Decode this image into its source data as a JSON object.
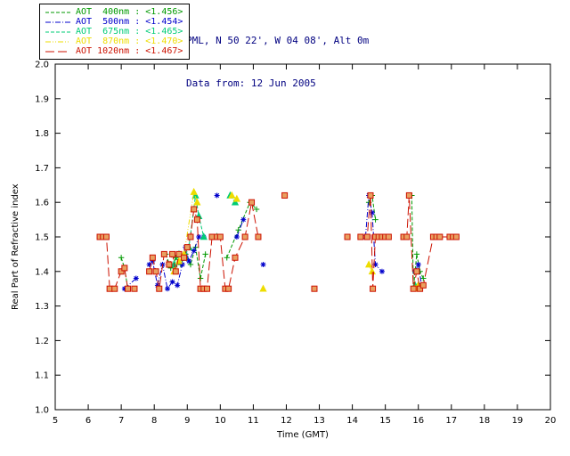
{
  "header": {
    "line1": "PML, N 50 22', W 04 08', Alt 0m",
    "line2": "Data from: 12 Jun 2005"
  },
  "chart_data": {
    "type": "line",
    "title": "",
    "xlabel": "Time (GMT)",
    "ylabel": "Real Part of Refractive index",
    "xlim": [
      5,
      20
    ],
    "ylim": [
      1.0,
      2.0
    ],
    "xticks": [
      5,
      6,
      7,
      8,
      9,
      10,
      11,
      12,
      13,
      14,
      15,
      16,
      17,
      18,
      19,
      20
    ],
    "yticks": [
      1.0,
      1.1,
      1.2,
      1.3,
      1.4,
      1.5,
      1.6,
      1.7,
      1.8,
      1.9,
      2.0
    ],
    "ytick_labels": [
      "1.0",
      "1.1",
      "1.2",
      "1.3",
      "1.4",
      "1.5",
      "1.6",
      "1.7",
      "1.8",
      "1.9",
      "2.0"
    ],
    "grid": false,
    "legend_position": "top-left",
    "series": [
      {
        "id": "400nm",
        "legend_text": "AOT  400nm : <1.456>",
        "color": "#009900",
        "marker": "plus",
        "dash": "4,2",
        "x": [
          7.0,
          7.1,
          7.2,
          8.35,
          8.5,
          8.65,
          8.8,
          8.95,
          9.1,
          9.25,
          9.4,
          9.55,
          10.2,
          10.55,
          10.9,
          11.1,
          14.5,
          14.6,
          14.7,
          15.8,
          15.85,
          15.95,
          16.05,
          16.15
        ],
        "y": [
          1.44,
          1.41,
          1.35,
          1.45,
          1.41,
          1.44,
          1.42,
          1.45,
          1.42,
          1.47,
          1.38,
          1.45,
          1.44,
          1.52,
          1.6,
          1.58,
          1.6,
          1.62,
          1.55,
          1.62,
          1.35,
          1.45,
          1.4,
          1.38
        ]
      },
      {
        "id": "500nm",
        "legend_text": "AOT  500nm : <1.454>",
        "color": "#0000cc",
        "marker": "asterisk",
        "dash": "6,2,1,2",
        "x": [
          6.65,
          7.1,
          7.45,
          7.85,
          7.95,
          8.1,
          8.25,
          8.4,
          8.55,
          8.7,
          8.85,
          8.95,
          9.05,
          9.2,
          9.35,
          9.5,
          9.9,
          10.5,
          10.7,
          11.3,
          14.4,
          14.5,
          14.6,
          14.7,
          14.9,
          15.9,
          16.0,
          16.1
        ],
        "y": [
          1.35,
          1.35,
          1.38,
          1.42,
          1.43,
          1.36,
          1.42,
          1.35,
          1.37,
          1.36,
          1.42,
          1.47,
          1.43,
          1.46,
          1.5,
          1.5,
          1.62,
          1.5,
          1.55,
          1.42,
          1.5,
          1.62,
          1.57,
          1.42,
          1.4,
          1.4,
          1.42,
          1.36
        ]
      },
      {
        "id": "675nm",
        "legend_text": "AOT  675nm : <1.465>",
        "color": "#00cc77",
        "marker": "triangle",
        "dash": "4,2",
        "x": [
          8.6,
          8.75,
          8.9,
          9.05,
          9.25,
          9.35,
          9.5,
          9.9,
          10.3,
          10.45,
          15.9,
          16.0
        ],
        "y": [
          1.42,
          1.45,
          1.44,
          1.47,
          1.62,
          1.56,
          1.5,
          1.5,
          1.62,
          1.6,
          1.36,
          1.36
        ]
      },
      {
        "id": "870nm",
        "legend_text": "AOT  870nm : <1.470>",
        "color": "#eedd00",
        "marker": "triangle",
        "dash": "6,2,1,2,1,2",
        "x": [
          8.6,
          8.75,
          8.9,
          9.2,
          9.3,
          10.35,
          10.5,
          11.3,
          14.5,
          14.6,
          15.9,
          16.0
        ],
        "y": [
          1.4,
          1.43,
          1.45,
          1.63,
          1.6,
          1.62,
          1.61,
          1.35,
          1.42,
          1.4,
          1.35,
          1.36
        ]
      },
      {
        "id": "1020nm",
        "legend_text": "AOT 1020nm : <1.467>",
        "color": "#cc1100",
        "marker": "square",
        "marker_fill": "#e8a060",
        "dash": "10,4",
        "x": [
          6.35,
          6.45,
          6.55,
          6.65,
          6.8,
          7.0,
          7.1,
          7.2,
          7.4,
          7.85,
          7.95,
          8.05,
          8.15,
          8.3,
          8.45,
          8.55,
          8.65,
          8.75,
          8.9,
          9.0,
          9.1,
          9.2,
          9.3,
          9.4,
          9.5,
          9.6,
          9.75,
          9.9,
          10.0,
          10.15,
          10.25,
          10.45,
          10.75,
          10.95,
          11.15,
          11.95,
          12.85,
          13.85,
          14.25,
          14.45,
          14.55,
          14.62,
          14.7,
          14.8,
          14.9,
          15.0,
          15.1,
          15.55,
          15.65,
          15.72,
          15.85,
          15.95,
          16.05,
          16.15,
          16.45,
          16.55,
          16.65,
          16.95,
          17.05,
          17.15
        ],
        "y": [
          1.5,
          1.5,
          1.5,
          1.35,
          1.35,
          1.4,
          1.41,
          1.35,
          1.35,
          1.4,
          1.44,
          1.4,
          1.35,
          1.45,
          1.42,
          1.45,
          1.4,
          1.45,
          1.44,
          1.47,
          1.5,
          1.58,
          1.55,
          1.35,
          1.35,
          1.35,
          1.5,
          1.5,
          1.5,
          1.35,
          1.35,
          1.44,
          1.5,
          1.6,
          1.5,
          1.62,
          1.35,
          1.5,
          1.5,
          1.5,
          1.62,
          1.35,
          1.5,
          1.5,
          1.5,
          1.5,
          1.5,
          1.5,
          1.5,
          1.62,
          1.35,
          1.4,
          1.35,
          1.36,
          1.5,
          1.5,
          1.5,
          1.5,
          1.5,
          1.5
        ]
      }
    ]
  }
}
